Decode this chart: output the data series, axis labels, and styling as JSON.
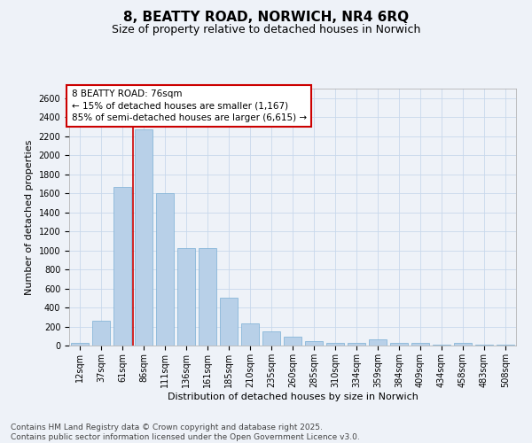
{
  "title": "8, BEATTY ROAD, NORWICH, NR4 6RQ",
  "subtitle": "Size of property relative to detached houses in Norwich",
  "xlabel": "Distribution of detached houses by size in Norwich",
  "ylabel": "Number of detached properties",
  "categories": [
    "12sqm",
    "37sqm",
    "61sqm",
    "86sqm",
    "111sqm",
    "136sqm",
    "161sqm",
    "185sqm",
    "210sqm",
    "235sqm",
    "260sqm",
    "285sqm",
    "310sqm",
    "334sqm",
    "359sqm",
    "384sqm",
    "409sqm",
    "434sqm",
    "458sqm",
    "483sqm",
    "508sqm"
  ],
  "values": [
    25,
    260,
    1670,
    2270,
    1600,
    1020,
    1020,
    500,
    235,
    145,
    95,
    50,
    30,
    25,
    65,
    25,
    25,
    10,
    25,
    10,
    10
  ],
  "bar_color": "#b8d0e8",
  "bar_edge_color": "#7aafd4",
  "grid_color": "#c8d8ec",
  "background_color": "#eef2f8",
  "vline_color": "#cc0000",
  "vline_x_index": 2,
  "ylim": [
    0,
    2700
  ],
  "yticks": [
    0,
    200,
    400,
    600,
    800,
    1000,
    1200,
    1400,
    1600,
    1800,
    2000,
    2200,
    2400,
    2600
  ],
  "annotation_text": "8 BEATTY ROAD: 76sqm\n← 15% of detached houses are smaller (1,167)\n85% of semi-detached houses are larger (6,615) →",
  "annotation_box_color": "#ffffff",
  "annotation_box_edge": "#cc0000",
  "footer_text": "Contains HM Land Registry data © Crown copyright and database right 2025.\nContains public sector information licensed under the Open Government Licence v3.0.",
  "title_fontsize": 11,
  "subtitle_fontsize": 9,
  "axis_label_fontsize": 8,
  "tick_fontsize": 7,
  "annotation_fontsize": 7.5,
  "footer_fontsize": 6.5
}
